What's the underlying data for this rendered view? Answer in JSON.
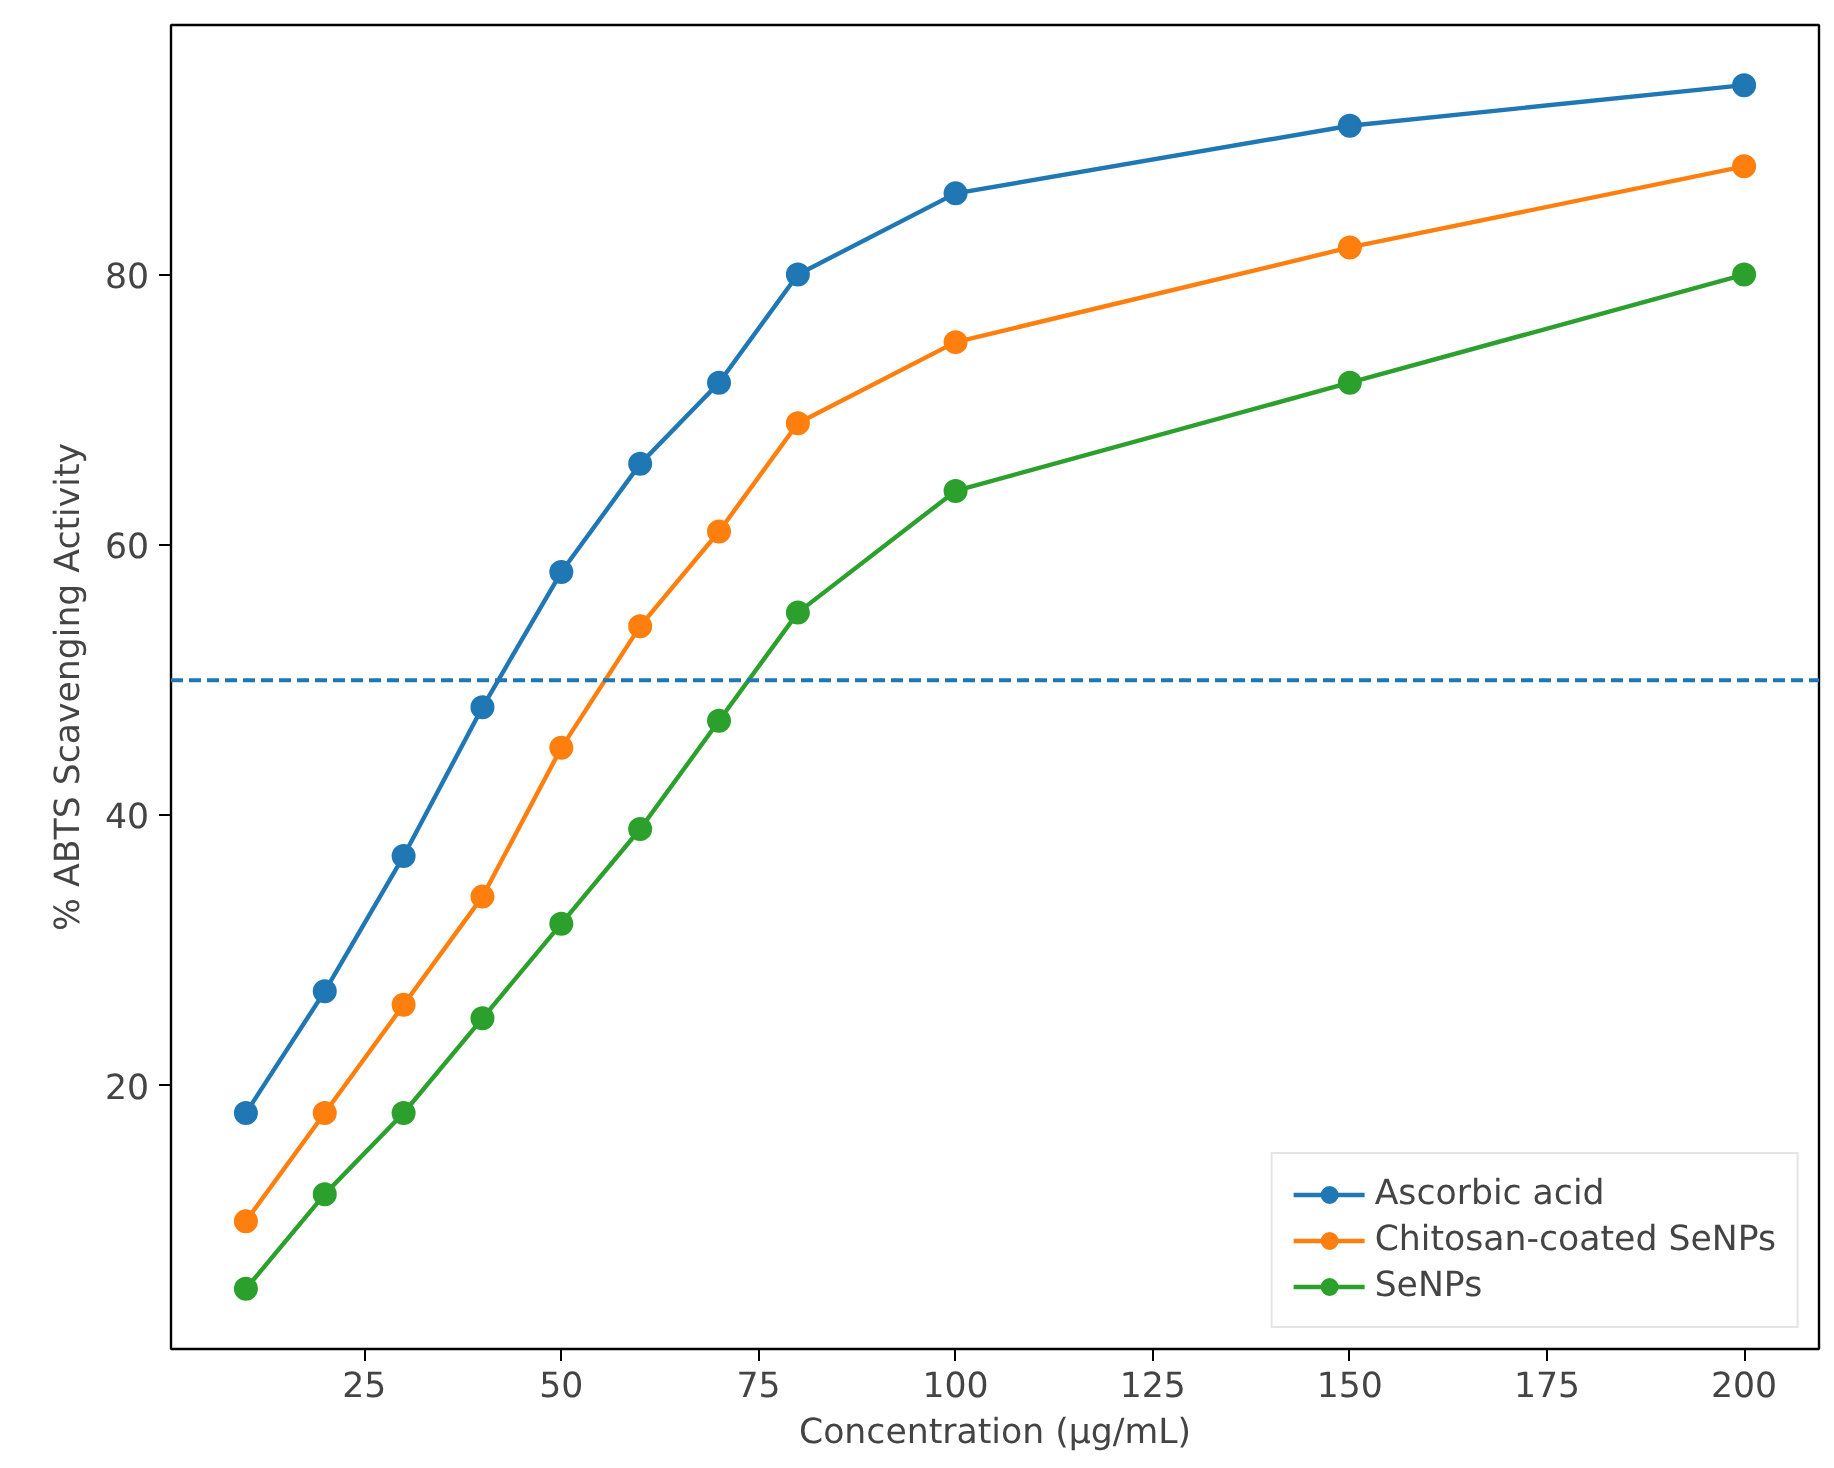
{
  "chart_data": {
    "type": "line",
    "xlabel": "Concentration (µg/mL)",
    "ylabel": "% ABTS Scavenging Activity",
    "x": [
      10,
      20,
      30,
      40,
      50,
      60,
      70,
      80,
      100,
      150,
      200
    ],
    "series": [
      {
        "name": "Ascorbic acid",
        "color": "#1f77b4",
        "values": [
          18,
          27,
          37,
          48,
          58,
          66,
          72,
          80,
          86,
          91,
          94
        ]
      },
      {
        "name": "Chitosan-coated SeNPs",
        "color": "#ff7f0e",
        "values": [
          10,
          18,
          26,
          34,
          45,
          54,
          61,
          69,
          75,
          82,
          88
        ]
      },
      {
        "name": "SeNPs",
        "color": "#2ca02c",
        "values": [
          5,
          12,
          18,
          25,
          32,
          39,
          47,
          55,
          64,
          72,
          80
        ]
      }
    ],
    "xlim": [
      0.5,
      209.5
    ],
    "ylim": [
      0.55,
      98.45
    ],
    "xticks": [
      25,
      50,
      75,
      100,
      125,
      150,
      175,
      200
    ],
    "yticks": [
      20,
      40,
      60,
      80
    ],
    "ref_lines": [
      {
        "axis": "y",
        "value": 50,
        "color": "#1f77b4",
        "line_style": "dashed"
      }
    ],
    "legend": "bottom right",
    "grid": false,
    "marker": "circle",
    "line_style": "solid"
  }
}
